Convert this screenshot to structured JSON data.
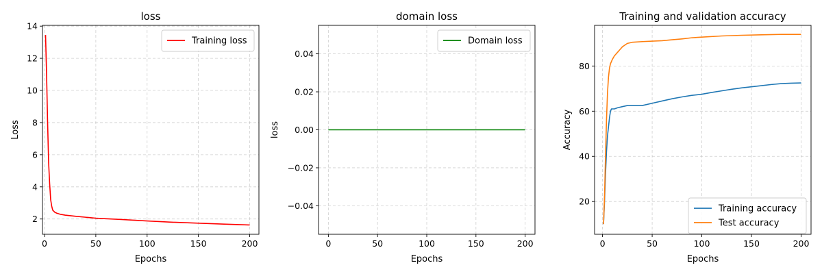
{
  "chart_data": [
    {
      "type": "line",
      "title": "loss",
      "xlabel": "Epochs",
      "ylabel": "Loss",
      "xlim": [
        -2,
        209
      ],
      "ylim": [
        1.05,
        14.05
      ],
      "xticks": [
        0,
        50,
        100,
        150,
        200
      ],
      "yticks": [
        2,
        4,
        6,
        8,
        10,
        12,
        14
      ],
      "ytick_labels": [
        "2",
        "4",
        "6",
        "8",
        "10",
        "12",
        "14"
      ],
      "grid": true,
      "legend": "top-right",
      "series": [
        {
          "name": "Training loss",
          "color": "#ff0000",
          "x": [
            1,
            2,
            3,
            4,
            5,
            6,
            7,
            8,
            10,
            12,
            15,
            20,
            30,
            40,
            50,
            75,
            100,
            125,
            150,
            175,
            200
          ],
          "y": [
            13.45,
            11.0,
            8.0,
            5.5,
            4.2,
            3.2,
            2.8,
            2.55,
            2.42,
            2.36,
            2.3,
            2.24,
            2.17,
            2.11,
            2.05,
            1.97,
            1.88,
            1.8,
            1.74,
            1.68,
            1.63
          ]
        }
      ]
    },
    {
      "type": "line",
      "title": "domain loss",
      "xlabel": "Epochs",
      "ylabel": "loss",
      "xlim": [
        -10,
        210
      ],
      "ylim": [
        -0.055,
        0.055
      ],
      "xticks": [
        0,
        50,
        100,
        150,
        200
      ],
      "yticks": [
        -0.04,
        -0.02,
        0.0,
        0.02,
        0.04
      ],
      "ytick_labels": [
        "−0.04",
        "−0.02",
        "0.00",
        "0.02",
        "0.04"
      ],
      "grid": true,
      "legend": "top-right",
      "series": [
        {
          "name": "Domain loss",
          "color": "#008000",
          "x": [
            0,
            200
          ],
          "y": [
            0,
            0
          ]
        }
      ]
    },
    {
      "type": "line",
      "title": "Training and validation accuracy",
      "xlabel": "Epochs",
      "ylabel": "Accuracy",
      "xlim": [
        -8,
        210
      ],
      "ylim": [
        5.5,
        98
      ],
      "xticks": [
        0,
        50,
        100,
        150,
        200
      ],
      "yticks": [
        20,
        40,
        60,
        80
      ],
      "ytick_labels": [
        "20",
        "40",
        "60",
        "80"
      ],
      "grid": true,
      "legend": "bottom-right",
      "series": [
        {
          "name": "Training accuracy",
          "color": "#1f77b4",
          "x": [
            1,
            2,
            3,
            4,
            5,
            6,
            7,
            8,
            9,
            10,
            12,
            15,
            20,
            25,
            30,
            40,
            50,
            60,
            70,
            80,
            90,
            100,
            110,
            120,
            130,
            140,
            150,
            160,
            170,
            180,
            190,
            200
          ],
          "y": [
            10,
            20,
            32,
            42,
            49,
            53,
            57,
            60,
            61,
            61,
            61,
            61.5,
            62,
            62.5,
            62.5,
            62.5,
            63.5,
            64.5,
            65.5,
            66.3,
            67,
            67.5,
            68.3,
            69,
            69.7,
            70.3,
            70.8,
            71.3,
            71.8,
            72.2,
            72.4,
            72.5
          ]
        },
        {
          "name": "Test accuracy",
          "color": "#ff7f0e",
          "x": [
            1,
            2,
            3,
            4,
            5,
            6,
            7,
            8,
            9,
            10,
            12,
            15,
            18,
            20,
            25,
            30,
            40,
            50,
            60,
            70,
            80,
            90,
            100,
            120,
            140,
            160,
            180,
            200
          ],
          "y": [
            10,
            22,
            40,
            56,
            68,
            75,
            79,
            81,
            82,
            83,
            84.5,
            86,
            87.5,
            88.5,
            90,
            90.5,
            90.8,
            91,
            91.2,
            91.6,
            92,
            92.5,
            92.8,
            93.3,
            93.6,
            93.8,
            94,
            94
          ]
        }
      ]
    }
  ]
}
